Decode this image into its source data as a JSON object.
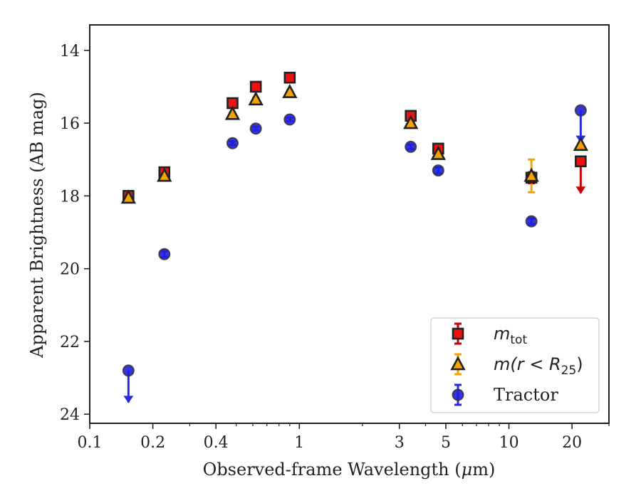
{
  "chart_data": {
    "type": "scatter",
    "xlabel_main": "Observed-frame Wavelength (",
    "xlabel_unit": "μ",
    "xlabel_unit_rest": "m)",
    "ylabel": "Apparent Brightness (AB mag)",
    "x_scale": "log",
    "y_inverted": true,
    "xlim": [
      0.1,
      30
    ],
    "ylim": [
      24.25,
      13.3
    ],
    "x_ticks": [
      {
        "value": 0.1,
        "label": "0.1"
      },
      {
        "value": 0.2,
        "label": "0.2"
      },
      {
        "value": 0.4,
        "label": "0.4"
      },
      {
        "value": 1,
        "label": "1"
      },
      {
        "value": 3,
        "label": "3"
      },
      {
        "value": 5,
        "label": "5"
      },
      {
        "value": 10,
        "label": "10"
      },
      {
        "value": 20,
        "label": "20"
      }
    ],
    "y_ticks": [
      {
        "value": 14,
        "label": "14"
      },
      {
        "value": 16,
        "label": "16"
      },
      {
        "value": 18,
        "label": "18"
      },
      {
        "value": 20,
        "label": "20"
      },
      {
        "value": 22,
        "label": "22"
      },
      {
        "value": 24,
        "label": "24"
      }
    ],
    "grid": false,
    "legend_position": "bottom-right",
    "series": [
      {
        "key": "m_tot",
        "legend_main": "m",
        "legend_sub": "tot",
        "marker": "square",
        "face_color": "#ee1111",
        "edge_color": "#222222",
        "err_color": "#cc0000",
        "points": [
          {
            "x": 0.153,
            "y": 18.0,
            "err": 0.08
          },
          {
            "x": 0.227,
            "y": 17.35,
            "err": 0.06
          },
          {
            "x": 0.48,
            "y": 15.45,
            "err": 0.05
          },
          {
            "x": 0.62,
            "y": 15.0,
            "err": 0.05
          },
          {
            "x": 0.9,
            "y": 14.75,
            "err": 0.05
          },
          {
            "x": 3.4,
            "y": 15.8,
            "err": 0.06
          },
          {
            "x": 4.6,
            "y": 16.7,
            "err": 0.08
          },
          {
            "x": 12.8,
            "y": 17.5,
            "err": 0.15
          },
          {
            "x": 22.0,
            "y": 17.05,
            "upper_limit": true
          }
        ]
      },
      {
        "key": "m_r25",
        "legend_main": "m(r < R",
        "legend_sub": "25",
        "legend_tail": ")",
        "marker": "triangle",
        "face_color": "#f5a300",
        "edge_color": "#222222",
        "err_color": "#f5a300",
        "points": [
          {
            "x": 0.153,
            "y": 18.05,
            "err": 0.08
          },
          {
            "x": 0.227,
            "y": 17.45,
            "err": 0.06
          },
          {
            "x": 0.48,
            "y": 15.75,
            "err": 0.05
          },
          {
            "x": 0.62,
            "y": 15.35,
            "err": 0.05
          },
          {
            "x": 0.9,
            "y": 15.15,
            "err": 0.05
          },
          {
            "x": 3.4,
            "y": 16.0,
            "err": 0.06
          },
          {
            "x": 4.6,
            "y": 16.85,
            "err": 0.08
          },
          {
            "x": 12.8,
            "y": 17.45,
            "err": 0.45
          },
          {
            "x": 22.0,
            "y": 16.6
          }
        ]
      },
      {
        "key": "tractor",
        "legend_main": "Tractor",
        "marker": "circle",
        "face_color": "#1f1fdd",
        "edge_color": "#333333",
        "err_color": "#2a2ae0",
        "points": [
          {
            "x": 0.153,
            "y": 22.8,
            "upper_limit": true
          },
          {
            "x": 0.227,
            "y": 19.6,
            "err": 0.08
          },
          {
            "x": 0.48,
            "y": 16.55,
            "err": 0.05
          },
          {
            "x": 0.62,
            "y": 16.15,
            "err": 0.05
          },
          {
            "x": 0.9,
            "y": 15.9,
            "err": 0.05
          },
          {
            "x": 3.4,
            "y": 16.65,
            "err": 0.06
          },
          {
            "x": 4.6,
            "y": 17.3,
            "err": 0.08
          },
          {
            "x": 12.8,
            "y": 18.7,
            "err": 0.08
          },
          {
            "x": 22.0,
            "y": 15.65,
            "upper_limit": true
          }
        ]
      }
    ]
  }
}
